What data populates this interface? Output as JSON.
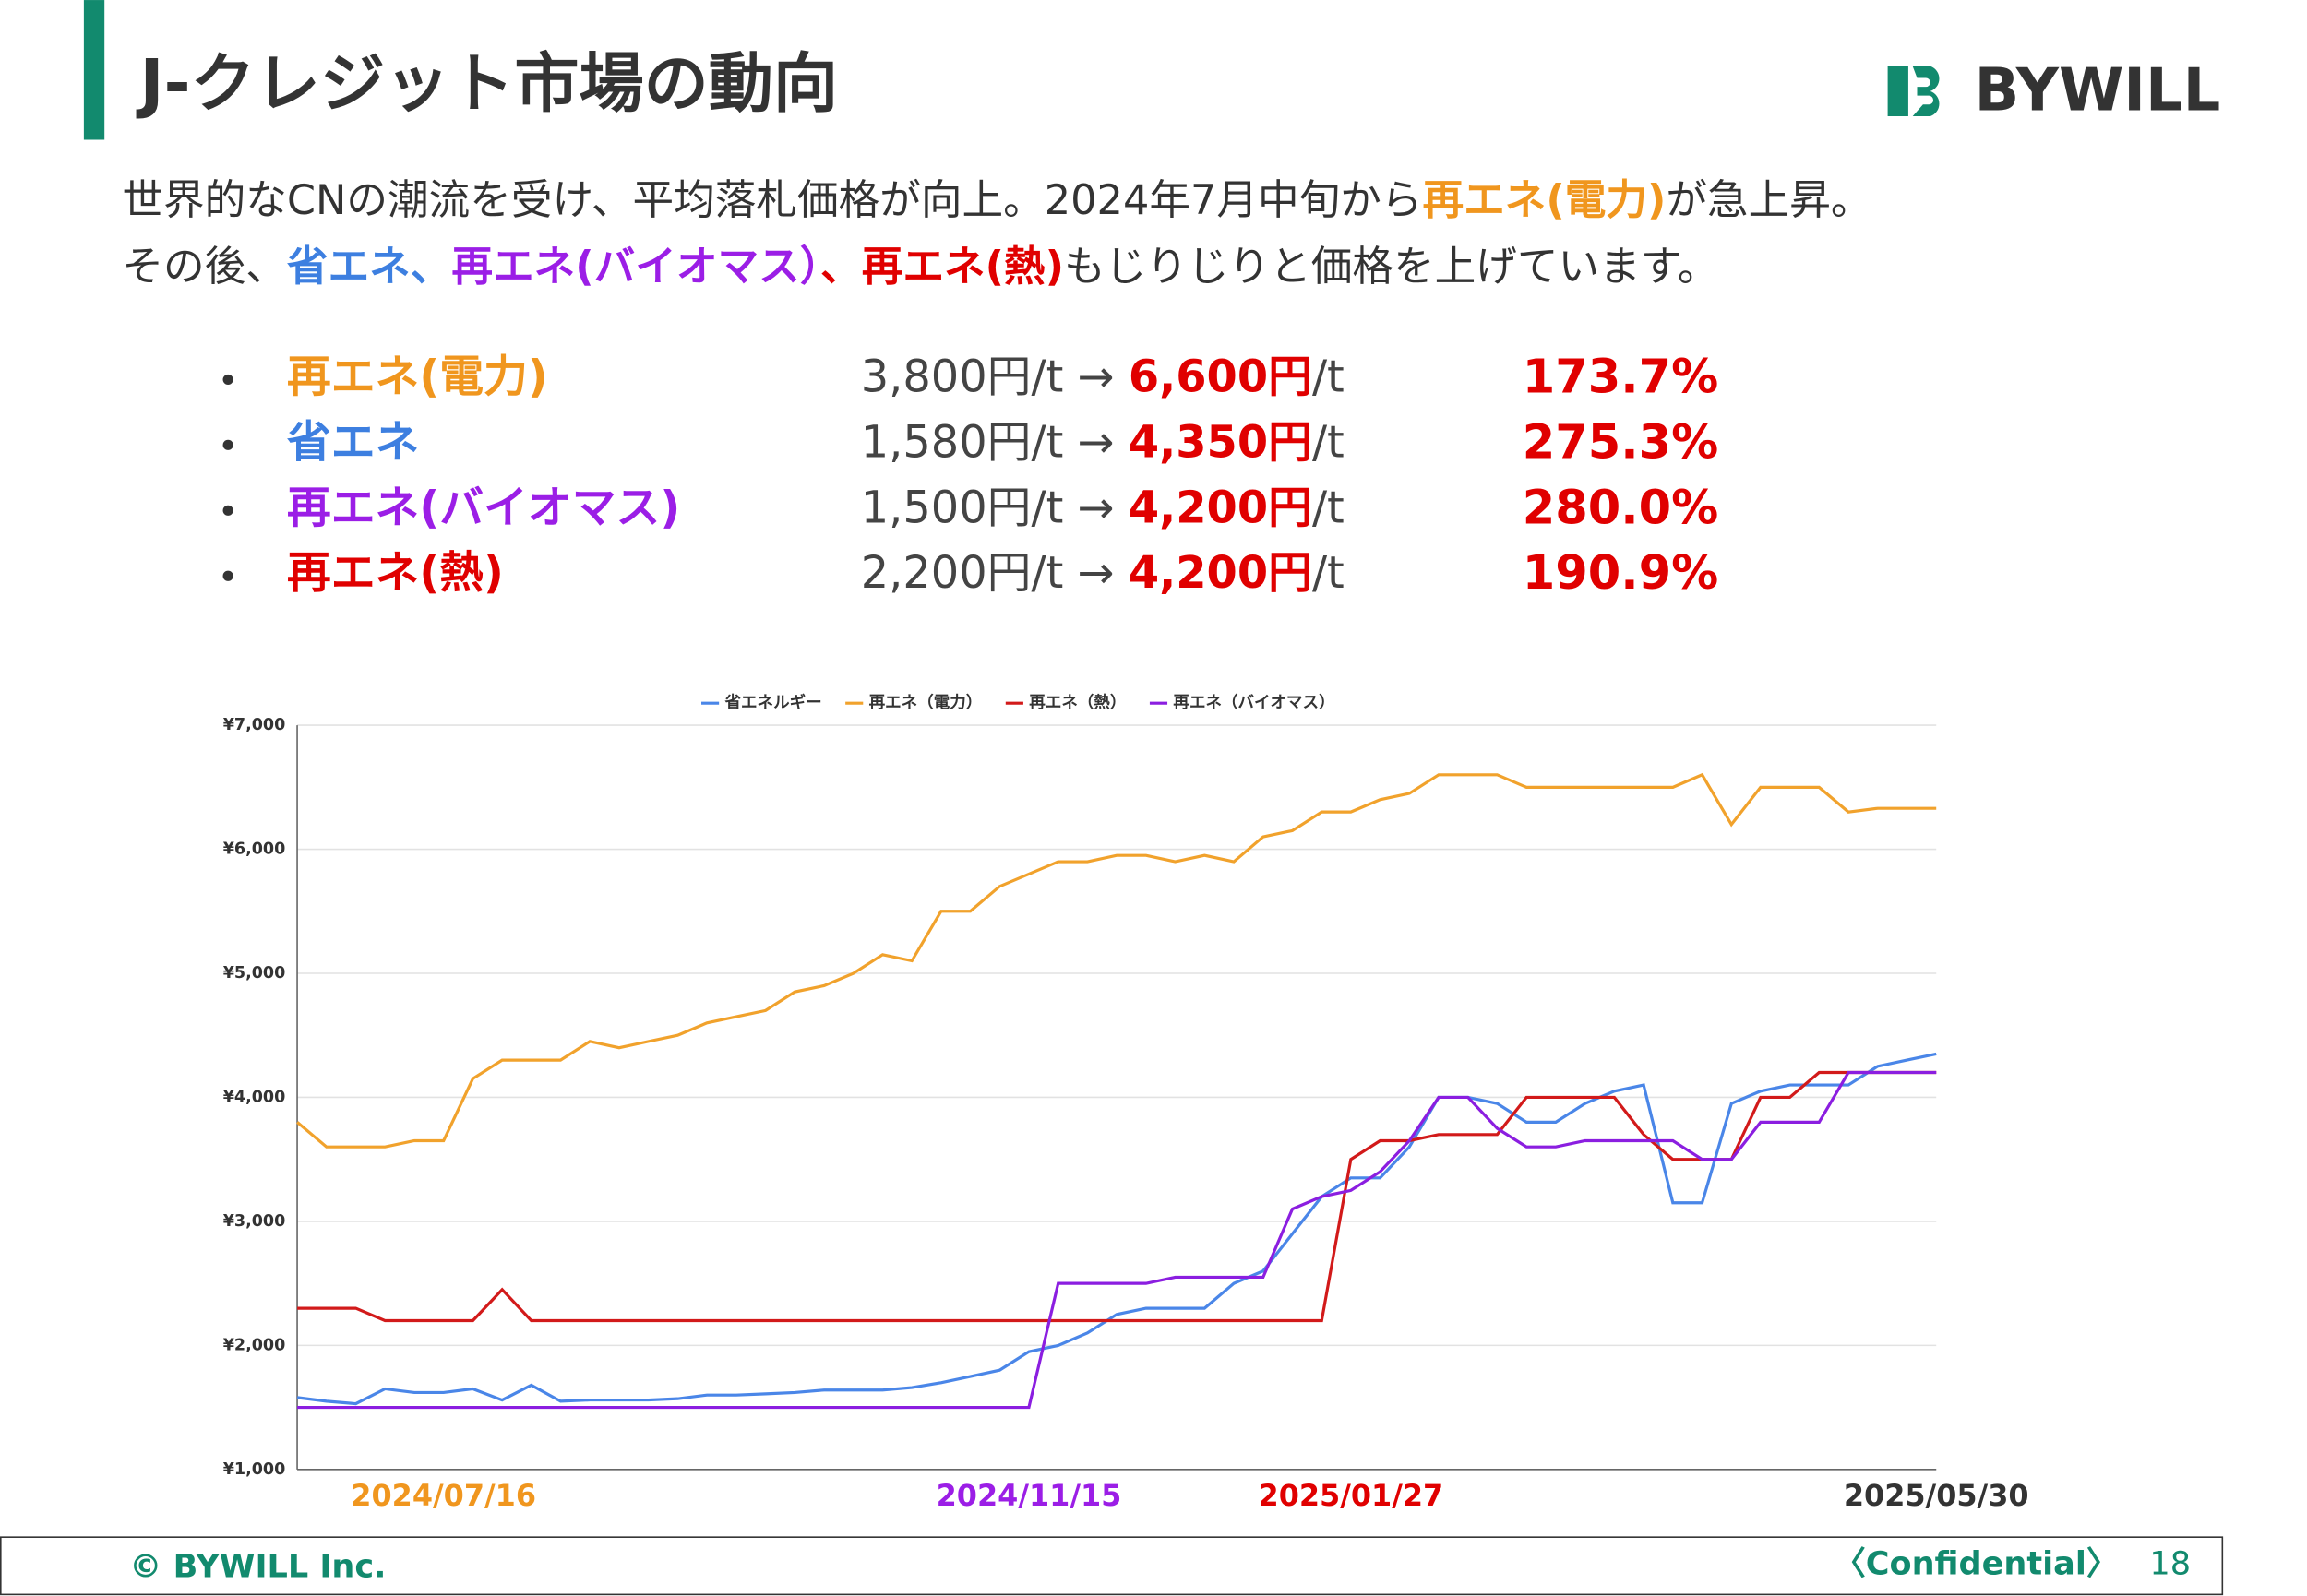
{
  "header": {
    "title": "J-クレジット市場の動向",
    "logo": "BYWILL"
  },
  "intro": [
    [
      {
        "text": "世界的なCNの潮流を受け、平均落札価格が向上。2024年7月中旬から",
        "color": "#333333"
      },
      {
        "text": "再エネ(電力)",
        "color": "#f0961e"
      },
      {
        "text": "が急上昇。",
        "color": "#333333"
      }
    ],
    [
      {
        "text": "その後、",
        "color": "#333333"
      },
      {
        "text": "省エネ、",
        "color": "#3d7fe0"
      },
      {
        "text": "再エネ(バイオマス）",
        "color": "#9b1ee6"
      },
      {
        "text": "、再エネ(熱)",
        "color": "#e00000"
      },
      {
        "text": "もじりじりと価格を上げています。",
        "color": "#333333"
      }
    ]
  ],
  "bullets": [
    {
      "name": "再エネ(電力)",
      "color": "#f0961e",
      "from": "3,800円/t → ",
      "to": "6,600円",
      "unit": "/t",
      "rate": "173.7%"
    },
    {
      "name": "省エネ",
      "color": "#3d7fe0",
      "from": "1,580円/t → ",
      "to": "4,350円",
      "unit": "/t",
      "rate": "275.3%"
    },
    {
      "name": "再エネ(バイオマス)",
      "color": "#9b1ee6",
      "from": "1,500円/t → ",
      "to": "4,200円",
      "unit": "/t",
      "rate": "280.0%"
    },
    {
      "name": "再エネ(熱)",
      "color": "#e00000",
      "from": "2,200円/t → ",
      "to": "4,200円",
      "unit": "/t",
      "rate": "190.9%"
    }
  ],
  "chart_data": {
    "type": "line",
    "ylim": [
      1000,
      7000
    ],
    "yticks": [
      {
        "value": 1000,
        "label": "¥1,000"
      },
      {
        "value": 2000,
        "label": "¥2,000"
      },
      {
        "value": 3000,
        "label": "¥3,000"
      },
      {
        "value": 4000,
        "label": "¥4,000"
      },
      {
        "value": 5000,
        "label": "¥5,000"
      },
      {
        "value": 6000,
        "label": "¥6,000"
      },
      {
        "value": 7000,
        "label": "¥7,000"
      }
    ],
    "grid": true,
    "legend": "top",
    "series": [
      {
        "name": "省エネルギー",
        "color": "#4a86e8",
        "values": [
          1580,
          1550,
          1530,
          1650,
          1620,
          1620,
          1650,
          1560,
          1680,
          1550,
          1560,
          1560,
          1560,
          1570,
          1600,
          1600,
          1610,
          1620,
          1640,
          1640,
          1640,
          1660,
          1700,
          1750,
          1800,
          1950,
          2000,
          2100,
          2250,
          2300,
          2300,
          2300,
          2500,
          2600,
          2900,
          3200,
          3350,
          3350,
          3600,
          4000,
          4000,
          3950,
          3800,
          3800,
          3950,
          4050,
          4100,
          3150,
          3150,
          3950,
          4050,
          4100,
          4100,
          4100,
          4250,
          4300,
          4350
        ]
      },
      {
        "name": "再エネ（電力）",
        "color": "#f1a22c",
        "values": [
          3800,
          3600,
          3600,
          3600,
          3650,
          3650,
          4150,
          4300,
          4300,
          4300,
          4450,
          4400,
          4450,
          4500,
          4600,
          4650,
          4700,
          4850,
          4900,
          5000,
          5150,
          5100,
          5500,
          5500,
          5700,
          5800,
          5900,
          5900,
          5950,
          5950,
          5900,
          5950,
          5900,
          6100,
          6150,
          6300,
          6300,
          6400,
          6450,
          6600,
          6600,
          6600,
          6500,
          6500,
          6500,
          6500,
          6500,
          6500,
          6600,
          6200,
          6500,
          6500,
          6500,
          6300,
          6330,
          6330,
          6330
        ]
      },
      {
        "name": "再エネ（熱）",
        "color": "#d21a1a",
        "values": [
          2300,
          2300,
          2300,
          2200,
          2200,
          2200,
          2200,
          2450,
          2200,
          2200,
          2200,
          2200,
          2200,
          2200,
          2200,
          2200,
          2200,
          2200,
          2200,
          2200,
          2200,
          2200,
          2200,
          2200,
          2200,
          2200,
          2200,
          2200,
          2200,
          2200,
          2200,
          2200,
          2200,
          2200,
          2200,
          2200,
          3500,
          3650,
          3650,
          3700,
          3700,
          3700,
          4000,
          4000,
          4000,
          4000,
          3700,
          3500,
          3500,
          3500,
          4000,
          4000,
          4200,
          4200,
          4200,
          4200,
          4200
        ]
      },
      {
        "name": "再エネ（バイオマス）",
        "color": "#8b1ee0",
        "values": [
          1500,
          1500,
          1500,
          1500,
          1500,
          1500,
          1500,
          1500,
          1500,
          1500,
          1500,
          1500,
          1500,
          1500,
          1500,
          1500,
          1500,
          1500,
          1500,
          1500,
          1500,
          1500,
          1500,
          1500,
          1500,
          1500,
          2500,
          2500,
          2500,
          2500,
          2550,
          2550,
          2550,
          2550,
          3100,
          3200,
          3250,
          3400,
          3650,
          4000,
          4000,
          3750,
          3600,
          3600,
          3650,
          3650,
          3650,
          3650,
          3500,
          3500,
          3800,
          3800,
          3800,
          4200,
          4200,
          4200,
          4200
        ]
      }
    ],
    "annotations": [
      {
        "text": "2024/07/16",
        "color": "#f0961e",
        "category": 5
      },
      {
        "text": "2024/11/15",
        "color": "#9b1ee6",
        "category": 25
      },
      {
        "text": "2025/01/27",
        "color": "#e00000",
        "category": 36
      },
      {
        "text": "2025/05/30",
        "color": "#333333",
        "category": 56
      }
    ]
  },
  "footer": {
    "copyright": "© BYWILL Inc.",
    "confidential": "〈Confidential〉",
    "page": "18"
  }
}
